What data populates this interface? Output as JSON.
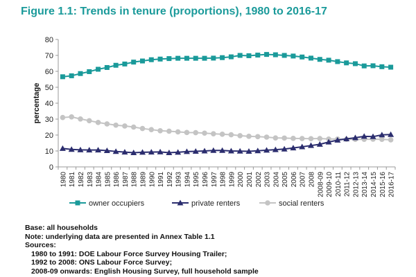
{
  "title": "Figure 1.1: Trends in tenure (proportions), 1980 to 2016-17",
  "notes": {
    "base": "Base: all households",
    "note": "Note: underlying data are presented in Annex Table 1.1",
    "sources_label": "Sources:",
    "sources": [
      "1980 to 1991: DOE Labour Force Survey Housing Trailer;",
      "1992 to 2008: ONS Labour Force Survey;",
      "2008-09 onwards: English Housing Survey, full household sample"
    ]
  },
  "chart_data": {
    "type": "line",
    "title": "Figure 1.1: Trends in tenure (proportions), 1980 to 2016-17",
    "xlabel": "",
    "ylabel": "percentage",
    "ylim": [
      0,
      80
    ],
    "yticks": [
      0,
      10,
      20,
      30,
      40,
      50,
      60,
      70,
      80
    ],
    "grid": false,
    "legend_position": "bottom",
    "categories": [
      "1980",
      "1981",
      "1982",
      "1983",
      "1984",
      "1985",
      "1986",
      "1987",
      "1988",
      "1989",
      "1990",
      "1991",
      "1992",
      "1993",
      "1994",
      "1995",
      "1996",
      "1997",
      "1998",
      "1999",
      "2000",
      "2001",
      "2002",
      "2003",
      "2004",
      "2005",
      "2006",
      "2007",
      "2008",
      "2008-09",
      "2009-10",
      "2010-11",
      "2011-12",
      "2012-13",
      "2013-14",
      "2014-15",
      "2015-16",
      "2016-17"
    ],
    "series": [
      {
        "name": "owner occupiers",
        "color": "#1a9a9a",
        "marker": "square",
        "values": [
          56.6,
          57.2,
          58.6,
          59.8,
          61.3,
          62.4,
          63.8,
          64.6,
          65.8,
          66.5,
          67.3,
          67.7,
          68.0,
          68.2,
          68.2,
          68.2,
          68.2,
          68.3,
          68.6,
          69.1,
          70.0,
          69.8,
          70.2,
          70.6,
          70.4,
          70.0,
          69.6,
          69.0,
          68.3,
          67.5,
          67.0,
          66.1,
          65.3,
          64.8,
          63.4,
          63.5,
          62.9,
          62.6
        ]
      },
      {
        "name": "private renters",
        "color": "#2b2d6e",
        "marker": "triangle",
        "values": [
          11.6,
          11.0,
          10.7,
          10.6,
          10.6,
          10.2,
          9.7,
          9.3,
          8.9,
          9.2,
          9.3,
          9.4,
          8.9,
          9.2,
          9.6,
          9.8,
          10.0,
          10.3,
          10.3,
          10.0,
          9.9,
          9.8,
          10.1,
          10.5,
          10.8,
          11.2,
          11.9,
          12.6,
          13.4,
          14.2,
          15.6,
          16.8,
          17.6,
          18.3,
          19.2,
          19.0,
          20.1,
          20.3
        ]
      },
      {
        "name": "social renters",
        "color": "#c4c4c4",
        "marker": "circle",
        "values": [
          31.0,
          31.4,
          30.1,
          29.0,
          27.9,
          27.0,
          26.2,
          25.7,
          25.0,
          24.1,
          23.4,
          22.7,
          22.4,
          22.0,
          21.6,
          21.5,
          21.2,
          20.8,
          20.5,
          20.2,
          19.6,
          19.2,
          19.0,
          18.7,
          18.2,
          18.1,
          17.9,
          17.8,
          17.7,
          17.8,
          17.5,
          17.5,
          17.3,
          17.3,
          17.3,
          17.4,
          17.3,
          17.0
        ]
      }
    ]
  }
}
